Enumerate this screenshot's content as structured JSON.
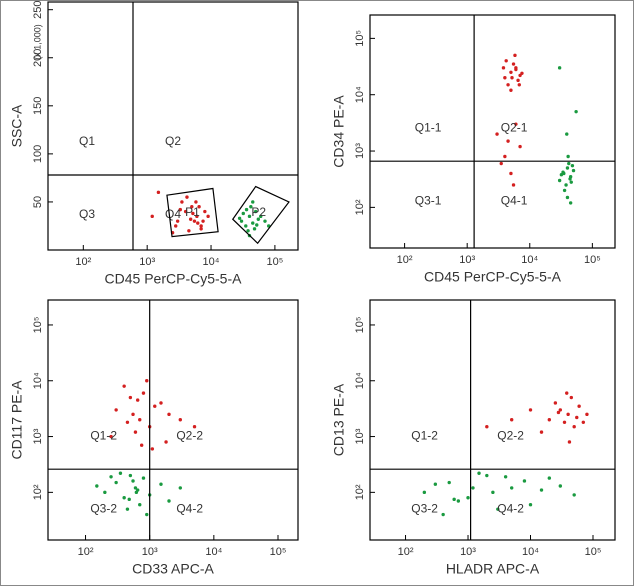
{
  "chart_data": [
    {
      "type": "scatter",
      "x_label": "CD45 PerCP-Cy5-5-A",
      "y_label": "SSC-A",
      "y_unit_note": "(x 1,000)",
      "xscale": "log",
      "yscale": "linear",
      "xlim": [
        28,
        230000
      ],
      "ylim": [
        0,
        258
      ],
      "xticks": [
        {
          "value": 100,
          "label": "10²"
        },
        {
          "value": 1000,
          "label": "10³"
        },
        {
          "value": 10000,
          "label": "10⁴"
        },
        {
          "value": 100000,
          "label": "10⁵"
        }
      ],
      "yticks": [
        50,
        100,
        150,
        200,
        250
      ],
      "quadrant": {
        "x": 600,
        "y": 78
      },
      "quadrant_labels": [
        "Q1",
        "Q2",
        "Q3",
        "Q4"
      ],
      "gates": [
        {
          "label": "P1",
          "x": [
            2040,
            10700,
            12900,
            2450
          ],
          "y": [
            57,
            64,
            19,
            14
          ]
        },
        {
          "label": "P2",
          "x": [
            21900,
            50000,
            166000,
            53700
          ],
          "y": [
            32,
            66,
            50,
            7
          ]
        }
      ],
      "series": [
        {
          "color": "#d42020",
          "x": [
            3000,
            4000,
            5000,
            6000,
            7000,
            8000,
            3500,
            4500,
            5500,
            6500,
            7500,
            9000,
            2800,
            4200,
            5200,
            6200,
            3300,
            4800,
            5800,
            7000,
            2500,
            1500,
            1200
          ],
          "y": [
            30,
            40,
            45,
            35,
            25,
            40,
            50,
            20,
            30,
            45,
            30,
            35,
            25,
            55,
            38,
            28,
            42,
            32,
            50,
            22,
            18,
            60,
            35
          ]
        },
        {
          "color": "#1a9a40",
          "x": [
            30000,
            35000,
            40000,
            45000,
            50000,
            60000,
            38000,
            42000,
            48000,
            55000,
            32000,
            70000,
            40000,
            45000,
            36000,
            52000,
            80000,
            28000
          ],
          "y": [
            30,
            25,
            35,
            28,
            40,
            35,
            20,
            45,
            22,
            32,
            38,
            30,
            15,
            50,
            42,
            26,
            25,
            33
          ]
        }
      ]
    },
    {
      "type": "scatter",
      "x_label": "CD45 PerCP-Cy5-5-A",
      "y_label": "CD34 PE-A",
      "xscale": "log",
      "yscale": "log",
      "xlim": [
        28,
        230000
      ],
      "ylim": [
        19,
        260000
      ],
      "xticks": [
        {
          "value": 100,
          "label": "10²"
        },
        {
          "value": 1000,
          "label": "10³"
        },
        {
          "value": 10000,
          "label": "10⁴"
        },
        {
          "value": 100000,
          "label": "10⁵"
        }
      ],
      "yticks": [
        {
          "value": 100,
          "label": "10²"
        },
        {
          "value": 1000,
          "label": "10³"
        },
        {
          "value": 10000,
          "label": "10⁴"
        },
        {
          "value": 100000,
          "label": "10⁵"
        }
      ],
      "quadrant": {
        "x": 1290,
        "y": 660
      },
      "quadrant_labels": [
        "Q1-1",
        "Q2-1",
        "Q3-1",
        "Q4-1"
      ],
      "series": [
        {
          "color": "#d42020",
          "x": [
            4000,
            5000,
            6000,
            7000,
            4500,
            5500,
            6500,
            5000,
            6000,
            4200,
            7500,
            5200,
            3800,
            6800,
            5800,
            3000,
            4000,
            5000,
            6000,
            4500,
            3500,
            5500,
            7000
          ],
          "y": [
            20000,
            25000,
            30000,
            22000,
            15000,
            35000,
            18000,
            12000,
            28000,
            40000,
            24000,
            20000,
            30000,
            15000,
            50000,
            2000,
            800,
            400,
            3000,
            1500,
            600,
            250,
            1200
          ]
        },
        {
          "color": "#1a9a40",
          "x": [
            30000,
            35000,
            40000,
            45000,
            38000,
            42000,
            50000,
            36000,
            32000,
            44000,
            48000,
            40000,
            34000,
            46000,
            41000,
            39000,
            55000,
            30000,
            45000
          ],
          "y": [
            300,
            400,
            500,
            350,
            250,
            600,
            450,
            200,
            380,
            320,
            550,
            150,
            420,
            280,
            800,
            2000,
            5000,
            30000,
            120
          ]
        }
      ]
    },
    {
      "type": "scatter",
      "x_label": "CD33 APC-A",
      "y_label": "CD117 PE-A",
      "xscale": "log",
      "yscale": "log",
      "xlim": [
        26,
        205000
      ],
      "ylim": [
        14,
        280000
      ],
      "xticks": [
        {
          "value": 100,
          "label": "10²"
        },
        {
          "value": 1000,
          "label": "10³"
        },
        {
          "value": 10000,
          "label": "10⁴"
        },
        {
          "value": 100000,
          "label": "10⁵"
        }
      ],
      "yticks": [
        {
          "value": 100,
          "label": "10²"
        },
        {
          "value": 1000,
          "label": "10³"
        },
        {
          "value": 10000,
          "label": "10⁴"
        },
        {
          "value": 100000,
          "label": "10⁵"
        }
      ],
      "quadrant": {
        "x": 1000,
        "y": 260
      },
      "quadrant_labels": [
        "Q1-2",
        "Q2-2",
        "Q3-2",
        "Q4-2"
      ],
      "series": [
        {
          "color": "#d42020",
          "x": [
            300,
            500,
            700,
            1000,
            1500,
            2000,
            400,
            600,
            800,
            1200,
            3000,
            5000,
            250,
            900,
            1800,
            550,
            650,
            750,
            450,
            1100
          ],
          "y": [
            3000,
            5000,
            2000,
            1500,
            4000,
            2500,
            8000,
            1200,
            6000,
            3500,
            2000,
            1500,
            1000,
            10000,
            800,
            2500,
            4500,
            700,
            1800,
            600
          ]
        },
        {
          "color": "#1a9a40",
          "x": [
            200,
            300,
            400,
            500,
            600,
            700,
            800,
            1000,
            1500,
            2000,
            350,
            450,
            550,
            650,
            150,
            900,
            3000,
            250,
            480,
            620
          ],
          "y": [
            100,
            150,
            80,
            200,
            120,
            60,
            180,
            90,
            140,
            70,
            220,
            50,
            160,
            110,
            130,
            40,
            120,
            190,
            75,
            100
          ]
        }
      ]
    },
    {
      "type": "scatter",
      "x_label": "HLADR APC-A",
      "y_label": "CD13 PE-A",
      "xscale": "log",
      "yscale": "log",
      "xlim": [
        27,
        225000
      ],
      "ylim": [
        14,
        280000
      ],
      "xticks": [
        {
          "value": 100,
          "label": "10²"
        },
        {
          "value": 1000,
          "label": "10³"
        },
        {
          "value": 10000,
          "label": "10⁴"
        },
        {
          "value": 100000,
          "label": "10⁵"
        }
      ],
      "yticks": [
        {
          "value": 100,
          "label": "10²"
        },
        {
          "value": 1000,
          "label": "10³"
        },
        {
          "value": 10000,
          "label": "10⁴"
        },
        {
          "value": 100000,
          "label": "10⁵"
        }
      ],
      "quadrant": {
        "x": 1100,
        "y": 260
      },
      "quadrant_labels": [
        "Q1-2",
        "Q2-2",
        "Q3-2",
        "Q4-2"
      ],
      "series": [
        {
          "color": "#d42020",
          "x": [
            20000,
            30000,
            40000,
            50000,
            60000,
            25000,
            35000,
            45000,
            55000,
            80000,
            15000,
            10000,
            5000,
            2000,
            42000,
            38000,
            70000,
            28000
          ],
          "y": [
            2000,
            3000,
            2500,
            1500,
            3500,
            4000,
            1800,
            5000,
            2200,
            2500,
            1200,
            3000,
            2000,
            1500,
            800,
            6000,
            1800,
            2700
          ]
        },
        {
          "color": "#1a9a40",
          "x": [
            200,
            500,
            1000,
            2000,
            5000,
            10000,
            20000,
            50000,
            300,
            700,
            1500,
            3000,
            8000,
            15000,
            30000,
            400,
            1200,
            4000,
            600,
            2500
          ],
          "y": [
            100,
            150,
            80,
            200,
            120,
            60,
            180,
            90,
            140,
            70,
            220,
            50,
            160,
            110,
            130,
            40,
            120,
            190,
            75,
            100
          ]
        }
      ]
    }
  ]
}
